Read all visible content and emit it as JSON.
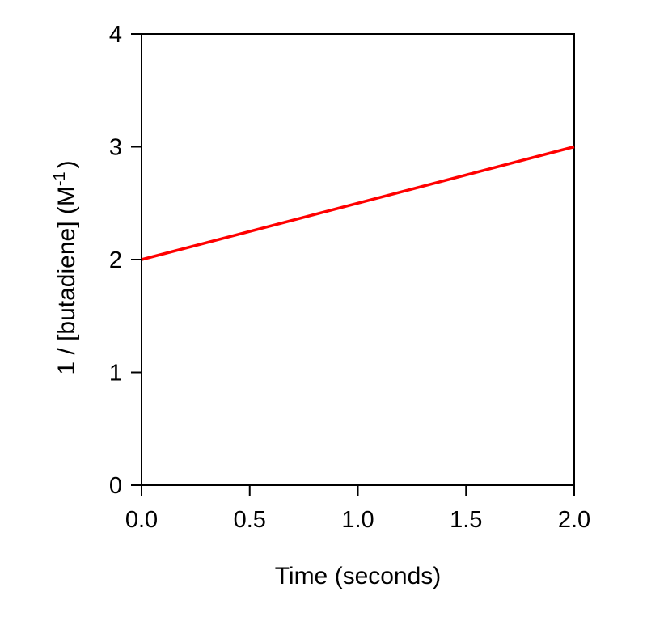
{
  "chart_data": {
    "type": "line",
    "title": "",
    "xlabel": "Time (seconds)",
    "ylabel_main": "1 / [butadiene]  (M",
    "ylabel_superscript": "-1",
    "ylabel_close": ")",
    "xlim": [
      0,
      2.0
    ],
    "ylim": [
      0,
      4
    ],
    "x_ticks": [
      0.0,
      0.5,
      1.0,
      1.5,
      2.0
    ],
    "x_tick_labels": [
      "0.0",
      "0.5",
      "1.0",
      "1.5",
      "2.0"
    ],
    "y_ticks": [
      0,
      1,
      2,
      3,
      4
    ],
    "y_tick_labels": [
      "0",
      "1",
      "2",
      "3",
      "4"
    ],
    "grid": false,
    "series": [
      {
        "x": [
          0.0,
          2.0
        ],
        "y": [
          2.0,
          3.0
        ],
        "color": "#ff0000"
      }
    ]
  }
}
